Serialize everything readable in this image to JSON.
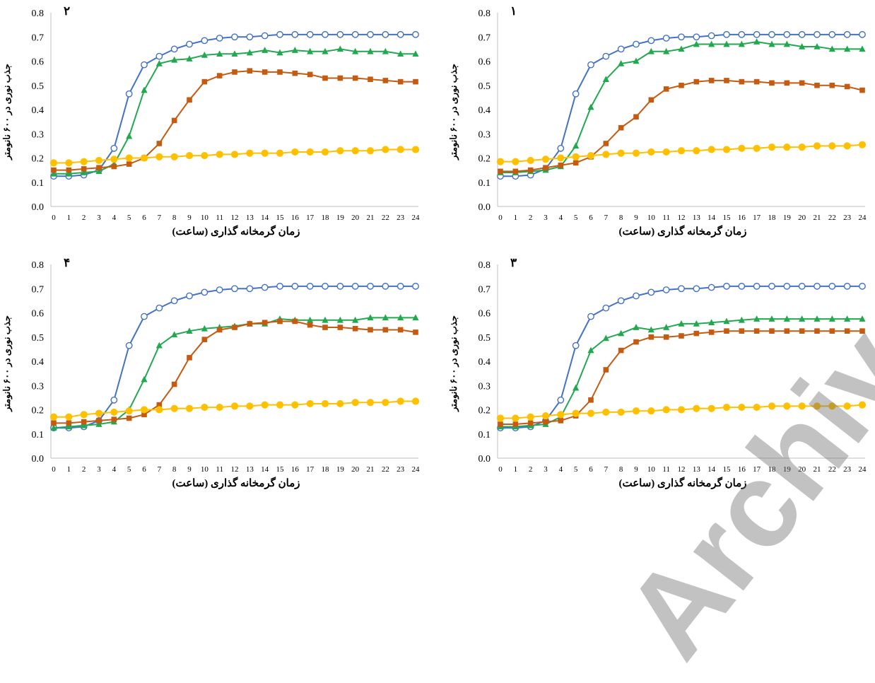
{
  "watermark_text": "Archive of SID",
  "chart_data": [
    {
      "panel": "2",
      "type": "line",
      "panel_label": "۲",
      "xlabel": "زمان گرمخانه گذاری (ساعت)",
      "ylabel": "جذب نوری در ۶۰۰ نانومتر",
      "x": [
        0,
        1,
        2,
        3,
        4,
        5,
        6,
        7,
        8,
        9,
        10,
        11,
        12,
        13,
        14,
        15,
        16,
        17,
        18,
        19,
        20,
        21,
        22,
        23,
        24
      ],
      "ylim": [
        0,
        0.8
      ],
      "yticks": [
        "0.0",
        "0.1",
        "0.2",
        "0.3",
        "0.4",
        "0.5",
        "0.6",
        "0.7",
        "0.8"
      ],
      "series": [
        {
          "color": "#4472C4",
          "marker": "open-circle",
          "values": [
            0.125,
            0.125,
            0.13,
            0.15,
            0.24,
            0.465,
            0.585,
            0.62,
            0.65,
            0.67,
            0.685,
            0.695,
            0.7,
            0.7,
            0.705,
            0.71,
            0.71,
            0.71,
            0.71,
            0.71,
            0.71,
            0.71,
            0.71,
            0.71,
            0.71
          ]
        },
        {
          "color": "#22A950",
          "marker": "triangle",
          "values": [
            0.135,
            0.135,
            0.14,
            0.145,
            0.175,
            0.29,
            0.48,
            0.59,
            0.605,
            0.61,
            0.625,
            0.63,
            0.63,
            0.635,
            0.645,
            0.635,
            0.645,
            0.64,
            0.64,
            0.65,
            0.64,
            0.64,
            0.64,
            0.63,
            0.63
          ]
        },
        {
          "color": "#C55A11",
          "marker": "square",
          "values": [
            0.15,
            0.15,
            0.155,
            0.16,
            0.165,
            0.175,
            0.2,
            0.26,
            0.355,
            0.44,
            0.515,
            0.54,
            0.555,
            0.56,
            0.555,
            0.555,
            0.55,
            0.545,
            0.53,
            0.53,
            0.53,
            0.525,
            0.52,
            0.515,
            0.515
          ]
        },
        {
          "color": "#FFC000",
          "marker": "circle",
          "values": [
            0.18,
            0.18,
            0.185,
            0.19,
            0.195,
            0.2,
            0.2,
            0.205,
            0.205,
            0.21,
            0.21,
            0.215,
            0.215,
            0.22,
            0.22,
            0.22,
            0.225,
            0.225,
            0.225,
            0.23,
            0.23,
            0.23,
            0.235,
            0.235,
            0.235
          ]
        }
      ]
    },
    {
      "panel": "1",
      "type": "line",
      "panel_label": "۱",
      "xlabel": "زمان گرمخانه گذاری (ساعت)",
      "ylabel": "جذب نوری در ۶۰۰ نانومتر",
      "x": [
        0,
        1,
        2,
        3,
        4,
        5,
        6,
        7,
        8,
        9,
        10,
        11,
        12,
        13,
        14,
        15,
        16,
        17,
        18,
        19,
        20,
        21,
        22,
        23,
        24
      ],
      "ylim": [
        0,
        0.8
      ],
      "yticks": [
        "0.0",
        "0.1",
        "0.2",
        "0.3",
        "0.4",
        "0.5",
        "0.6",
        "0.7",
        "0.8"
      ],
      "series": [
        {
          "color": "#4472C4",
          "marker": "open-circle",
          "values": [
            0.125,
            0.125,
            0.13,
            0.155,
            0.24,
            0.465,
            0.585,
            0.62,
            0.65,
            0.67,
            0.685,
            0.695,
            0.7,
            0.7,
            0.705,
            0.71,
            0.71,
            0.71,
            0.71,
            0.71,
            0.71,
            0.71,
            0.71,
            0.71,
            0.71
          ]
        },
        {
          "color": "#22A950",
          "marker": "triangle",
          "values": [
            0.14,
            0.14,
            0.145,
            0.15,
            0.165,
            0.25,
            0.41,
            0.525,
            0.59,
            0.6,
            0.64,
            0.64,
            0.65,
            0.67,
            0.67,
            0.67,
            0.67,
            0.68,
            0.67,
            0.67,
            0.66,
            0.66,
            0.65,
            0.65,
            0.65
          ]
        },
        {
          "color": "#C55A11",
          "marker": "square",
          "values": [
            0.145,
            0.145,
            0.15,
            0.16,
            0.17,
            0.18,
            0.205,
            0.26,
            0.325,
            0.37,
            0.44,
            0.485,
            0.5,
            0.515,
            0.52,
            0.52,
            0.515,
            0.515,
            0.51,
            0.51,
            0.51,
            0.5,
            0.5,
            0.495,
            0.48
          ]
        },
        {
          "color": "#FFC000",
          "marker": "circle",
          "values": [
            0.185,
            0.185,
            0.19,
            0.195,
            0.2,
            0.205,
            0.21,
            0.215,
            0.22,
            0.22,
            0.225,
            0.225,
            0.23,
            0.23,
            0.235,
            0.235,
            0.24,
            0.24,
            0.245,
            0.245,
            0.245,
            0.25,
            0.25,
            0.25,
            0.255
          ]
        }
      ]
    },
    {
      "panel": "4",
      "type": "line",
      "panel_label": "۴",
      "xlabel": "زمان گرمخانه گذاری (ساعت)",
      "ylabel": "جذب نوری در ۶۰۰ نانومتر",
      "x": [
        0,
        1,
        2,
        3,
        4,
        5,
        6,
        7,
        8,
        9,
        10,
        11,
        12,
        13,
        14,
        15,
        16,
        17,
        18,
        19,
        20,
        21,
        22,
        23,
        24
      ],
      "ylim": [
        0,
        0.8
      ],
      "yticks": [
        "0.0",
        "0.1",
        "0.2",
        "0.3",
        "0.4",
        "0.5",
        "0.6",
        "0.7",
        "0.8"
      ],
      "series": [
        {
          "color": "#4472C4",
          "marker": "open-circle",
          "values": [
            0.125,
            0.125,
            0.13,
            0.155,
            0.24,
            0.465,
            0.585,
            0.62,
            0.65,
            0.67,
            0.685,
            0.695,
            0.7,
            0.7,
            0.705,
            0.71,
            0.71,
            0.71,
            0.71,
            0.71,
            0.71,
            0.71,
            0.71,
            0.71,
            0.71
          ]
        },
        {
          "color": "#22A950",
          "marker": "triangle",
          "values": [
            0.125,
            0.13,
            0.135,
            0.14,
            0.15,
            0.2,
            0.325,
            0.465,
            0.51,
            0.525,
            0.535,
            0.54,
            0.545,
            0.555,
            0.555,
            0.575,
            0.57,
            0.57,
            0.57,
            0.57,
            0.57,
            0.58,
            0.58,
            0.58,
            0.58
          ]
        },
        {
          "color": "#C55A11",
          "marker": "square",
          "values": [
            0.145,
            0.145,
            0.15,
            0.155,
            0.16,
            0.165,
            0.18,
            0.22,
            0.305,
            0.415,
            0.49,
            0.53,
            0.54,
            0.555,
            0.56,
            0.565,
            0.565,
            0.55,
            0.54,
            0.54,
            0.535,
            0.53,
            0.53,
            0.53,
            0.52
          ]
        },
        {
          "color": "#FFC000",
          "marker": "circle",
          "values": [
            0.17,
            0.17,
            0.18,
            0.185,
            0.19,
            0.195,
            0.2,
            0.2,
            0.205,
            0.205,
            0.21,
            0.21,
            0.215,
            0.215,
            0.22,
            0.22,
            0.22,
            0.225,
            0.225,
            0.225,
            0.23,
            0.23,
            0.23,
            0.235,
            0.235
          ]
        }
      ]
    },
    {
      "panel": "3",
      "type": "line",
      "panel_label": "۳",
      "xlabel": "زمان گرمخانه گذاری (ساعت)",
      "ylabel": "جذب نوری در ۶۰۰ نانومتر",
      "x": [
        0,
        1,
        2,
        3,
        4,
        5,
        6,
        7,
        8,
        9,
        10,
        11,
        12,
        13,
        14,
        15,
        16,
        17,
        18,
        19,
        20,
        21,
        22,
        23,
        24
      ],
      "ylim": [
        0,
        0.8
      ],
      "yticks": [
        "0.0",
        "0.1",
        "0.2",
        "0.3",
        "0.4",
        "0.5",
        "0.6",
        "0.7",
        "0.8"
      ],
      "series": [
        {
          "color": "#4472C4",
          "marker": "open-circle",
          "values": [
            0.125,
            0.125,
            0.13,
            0.155,
            0.24,
            0.465,
            0.585,
            0.62,
            0.65,
            0.67,
            0.685,
            0.695,
            0.7,
            0.7,
            0.705,
            0.71,
            0.71,
            0.71,
            0.71,
            0.71,
            0.71,
            0.71,
            0.71,
            0.71,
            0.71
          ]
        },
        {
          "color": "#22A950",
          "marker": "triangle",
          "values": [
            0.13,
            0.13,
            0.135,
            0.14,
            0.17,
            0.29,
            0.445,
            0.495,
            0.515,
            0.54,
            0.53,
            0.54,
            0.555,
            0.555,
            0.56,
            0.565,
            0.57,
            0.575,
            0.575,
            0.575,
            0.575,
            0.575,
            0.575,
            0.575,
            0.575
          ]
        },
        {
          "color": "#C55A11",
          "marker": "square",
          "values": [
            0.14,
            0.14,
            0.145,
            0.15,
            0.155,
            0.175,
            0.24,
            0.365,
            0.445,
            0.48,
            0.5,
            0.5,
            0.505,
            0.515,
            0.52,
            0.525,
            0.525,
            0.525,
            0.525,
            0.525,
            0.525,
            0.525,
            0.525,
            0.525,
            0.525
          ]
        },
        {
          "color": "#FFC000",
          "marker": "circle",
          "values": [
            0.165,
            0.165,
            0.17,
            0.175,
            0.18,
            0.185,
            0.185,
            0.19,
            0.19,
            0.195,
            0.195,
            0.2,
            0.2,
            0.205,
            0.205,
            0.21,
            0.21,
            0.21,
            0.215,
            0.215,
            0.215,
            0.215,
            0.215,
            0.215,
            0.22
          ]
        }
      ]
    }
  ]
}
